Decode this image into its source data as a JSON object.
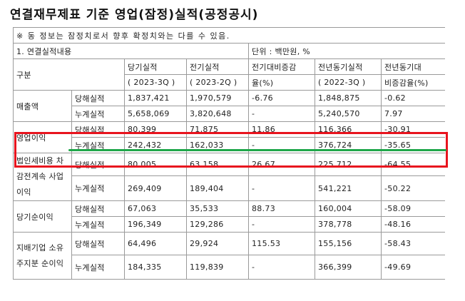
{
  "title": "연결재무제표 기준 영업(잠정)실적(공정공시)",
  "note": "※ 동 정보는 잠정치로서 향후 확정치와는 다를 수 있음.",
  "section_label": "1. 연결실적내용",
  "unit": "단위 : 백만원, %",
  "headers": {
    "category": "구분",
    "current": "당기실적",
    "current_period": "( 2023-3Q )",
    "previous": "전기실적",
    "previous_period": "( 2023-2Q )",
    "qoq_line1": "전기대비증감",
    "qoq_line2": "율(%)",
    "prev_year": "전년동기실적",
    "prev_year_period": "( 2022-3Q )",
    "yoy_line1": "전년동기대",
    "yoy_line2": "비증감율(%)"
  },
  "sub_labels": {
    "period": "당해실적",
    "cumulative": "누계실적"
  },
  "rows": [
    {
      "category": "매출액",
      "period": [
        "1,837,421",
        "1,970,579",
        "-6.76",
        "1,848,875",
        "-0.62"
      ],
      "cumulative": [
        "5,658,069",
        "3,820,648",
        "-",
        "5,240,570",
        "7.97"
      ]
    },
    {
      "category": "영업이익",
      "period": [
        "80,399",
        "71,875",
        "11.86",
        "116,366",
        "-30.91"
      ],
      "cumulative": [
        "242,432",
        "162,033",
        "-",
        "376,724",
        "-35.65"
      ]
    },
    {
      "category": "법인세비용 차감전계속 사업이익",
      "period": [
        "80,005",
        "63,158",
        "26.67",
        "225,712",
        "-64.55"
      ],
      "cumulative": [
        "269,409",
        "189,404",
        "-",
        "541,221",
        "-50.22"
      ]
    },
    {
      "category": "당기순이익",
      "period": [
        "67,063",
        "35,533",
        "88.73",
        "160,004",
        "-58.09"
      ],
      "cumulative": [
        "196,349",
        "129,286",
        "-",
        "378,778",
        "-48.16"
      ]
    },
    {
      "category": "지배기업 소유주지분 순이익",
      "period": [
        "64,496",
        "29,924",
        "115.53",
        "155,156",
        "-58.43"
      ],
      "cumulative": [
        "184,335",
        "119,839",
        "-",
        "366,399",
        "-49.69"
      ]
    }
  ],
  "colors": {
    "highlight_box": "#e8141e",
    "underline": "#1fa64a"
  }
}
